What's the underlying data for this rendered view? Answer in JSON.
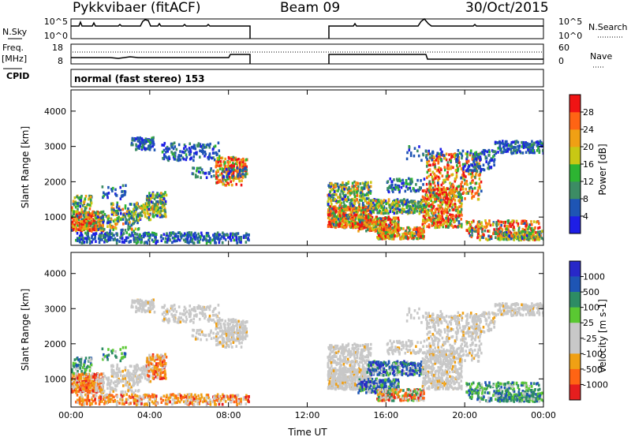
{
  "header": {
    "radar": "Pykkvibaer (fitACF)",
    "beam": "Beam 09",
    "date": "30/Oct/2015"
  },
  "panels": {
    "nsky_label": "N.Sky",
    "nsky_top_tick": "10^5",
    "nsky_bottom_tick": "10^0",
    "nsearch_label": "N.Search",
    "nsearch_top_tick": "10^5",
    "nsearch_bottom_tick": "10^0",
    "freq_label": "Freq.",
    "freq_unit": "[MHz]",
    "freq_top_tick": "18",
    "freq_bottom_tick": "8",
    "nave_label": "Nave",
    "nave_top_tick": "60",
    "nave_bottom_tick": "0",
    "cpid_label": "CPID",
    "cpid_text": "normal (fast stereo) 153"
  },
  "colors": {
    "power": [
      "#1e1ee6",
      "#1e55b4",
      "#3c8c64",
      "#2db432",
      "#c8c814",
      "#f0a014",
      "#ff6414",
      "#f01414"
    ],
    "velocity": [
      "#e61e1e",
      "#ff6414",
      "#f0a014",
      "#c8c8c8",
      "#c8c8c8",
      "#5ac832",
      "#2d8c64",
      "#1e55b4",
      "#2828c8"
    ]
  },
  "chart_data": [
    {
      "type": "heatmap",
      "name": "Power",
      "ylabel": "Slant Range [km]",
      "ylim": [
        200,
        4600
      ],
      "xlim": [
        0,
        24
      ],
      "x_ticks": [
        0,
        4,
        8,
        12,
        16,
        20,
        24
      ],
      "y_ticks": [
        1000,
        2000,
        3000,
        4000
      ],
      "colorbar_label": "Power [dB]",
      "colorbar_ticks": [
        "4",
        "8",
        "12",
        "16",
        "20",
        "24",
        "28"
      ],
      "data_gap": [
        9,
        13
      ]
    },
    {
      "type": "heatmap",
      "name": "Velocity",
      "ylabel": "Slant Range [km]",
      "xlabel": "Time UT",
      "ylim": [
        200,
        4600
      ],
      "xlim": [
        0,
        24
      ],
      "x_tick_labels": [
        "00:00",
        "04:00",
        "08:00",
        "12:00",
        "16:00",
        "20:00",
        "00:00"
      ],
      "y_ticks": [
        1000,
        2000,
        3000,
        4000
      ],
      "colorbar_label": "Velocity [m s-1]",
      "colorbar_ticks": [
        "1000",
        "500",
        "100",
        "25",
        "-25",
        "-100",
        "-500",
        "-1000"
      ]
    }
  ]
}
